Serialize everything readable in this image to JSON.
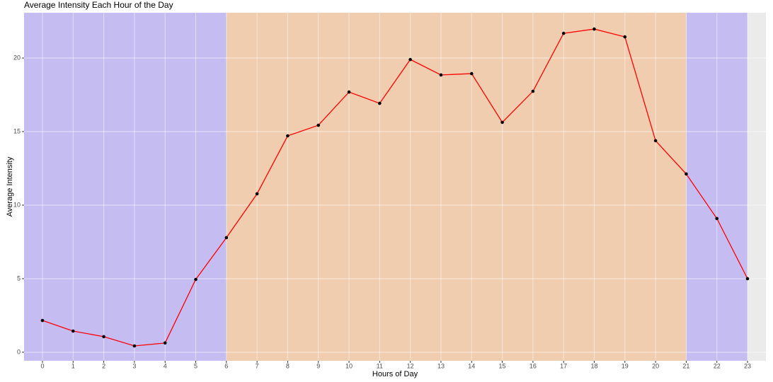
{
  "chart_data": {
    "type": "line",
    "title": "Average Intensity Each Hour of the Day",
    "x_label": "Hours of Day",
    "y_label": "Average Intensity",
    "x": [
      0,
      1,
      2,
      3,
      4,
      5,
      6,
      7,
      8,
      9,
      10,
      11,
      12,
      13,
      14,
      15,
      16,
      17,
      18,
      19,
      20,
      21,
      22,
      23
    ],
    "values": [
      2.16,
      1.44,
      1.06,
      0.43,
      0.63,
      4.95,
      7.79,
      10.77,
      14.71,
      15.43,
      17.69,
      16.92,
      19.9,
      18.85,
      18.94,
      15.63,
      17.74,
      21.68,
      21.97,
      21.44,
      14.38,
      12.12,
      9.09,
      5.0
    ],
    "color": "#ff0000",
    "point_color": "#000000",
    "bands": [
      {
        "from": -0.6,
        "to": 6,
        "color": "#c5bcf2"
      },
      {
        "from": 6,
        "to": 21,
        "color": "#f1cdb0"
      },
      {
        "from": 21,
        "to": 23,
        "color": "#c5bcf2"
      }
    ],
    "xlim": [
      -0.6,
      23.6
    ],
    "ylim": [
      -0.58,
      23.08
    ],
    "xticks": [
      0,
      1,
      2,
      3,
      4,
      5,
      6,
      7,
      8,
      9,
      10,
      11,
      12,
      13,
      14,
      15,
      16,
      17,
      18,
      19,
      20,
      21,
      22,
      23
    ],
    "yticks": [
      0,
      5,
      10,
      15,
      20
    ],
    "grid": true
  }
}
